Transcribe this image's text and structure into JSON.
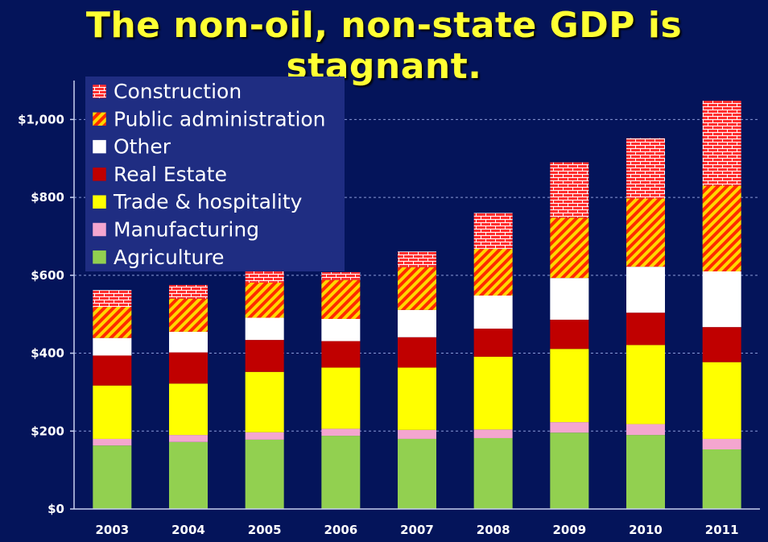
{
  "title": "The non-oil, non-state GDP is stagnant.",
  "chart_data": {
    "type": "bar",
    "stacked": true,
    "categories": [
      "2003",
      "2004",
      "2005",
      "2006",
      "2007",
      "2008",
      "2009",
      "2010",
      "2011"
    ],
    "ylim": [
      0,
      1100
    ],
    "yticks": [
      0,
      200,
      400,
      600,
      800,
      1000
    ],
    "ytick_labels": [
      "$0",
      "$200",
      "$400",
      "$600",
      "$800",
      "$1,000"
    ],
    "legend_position": "top-left",
    "grid": "horizontal dashed",
    "series": [
      {
        "name": "Agriculture",
        "color": "#92d050",
        "pattern": "solid",
        "values": [
          163,
          172,
          178,
          188,
          180,
          182,
          196,
          190,
          153
        ]
      },
      {
        "name": "Manufacturing",
        "color": "#f4a6cf",
        "pattern": "solid",
        "values": [
          17,
          18,
          19,
          18,
          23,
          22,
          27,
          28,
          27
        ]
      },
      {
        "name": "Trade & hospitality",
        "color": "#ffff00",
        "pattern": "solid",
        "values": [
          137,
          132,
          155,
          157,
          160,
          187,
          188,
          203,
          197
        ]
      },
      {
        "name": "Real Estate",
        "color": "#c00000",
        "pattern": "solid",
        "values": [
          77,
          80,
          82,
          68,
          78,
          72,
          75,
          83,
          90
        ]
      },
      {
        "name": "Other",
        "color": "#ffffff",
        "pattern": "solid",
        "values": [
          45,
          53,
          57,
          57,
          70,
          85,
          107,
          118,
          143
        ]
      },
      {
        "name": "Public administration",
        "color": "#ff0000",
        "color2": "#ffd700",
        "pattern": "diagonal",
        "values": [
          80,
          85,
          90,
          100,
          110,
          120,
          155,
          175,
          220
        ]
      },
      {
        "name": "Construction",
        "color": "#ff3333",
        "color2": "#ffffff",
        "pattern": "brick",
        "values": [
          43,
          35,
          30,
          20,
          40,
          92,
          142,
          155,
          218
        ]
      }
    ],
    "legend_order": [
      "Construction",
      "Public administration",
      "Other",
      "Real Estate",
      "Trade & hospitality",
      "Manufacturing",
      "Agriculture"
    ]
  }
}
